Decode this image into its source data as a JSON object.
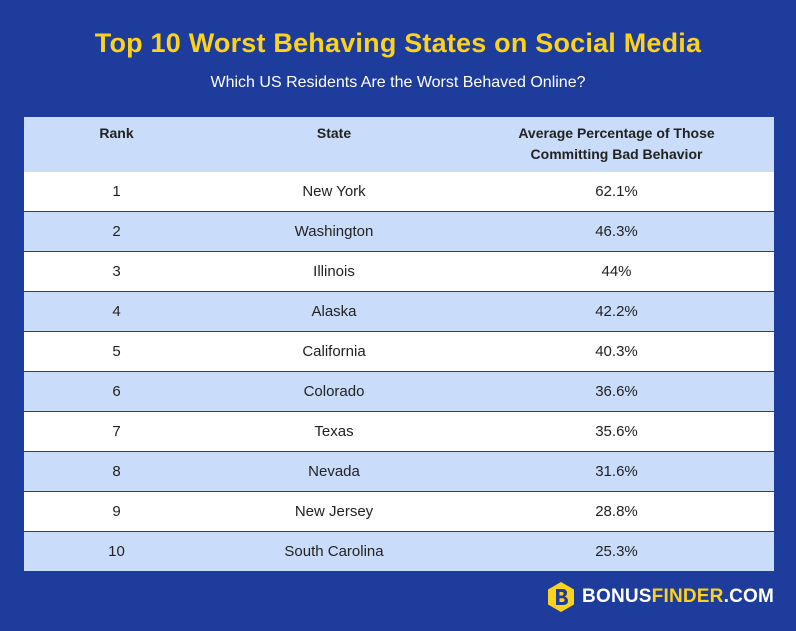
{
  "title": "Top 10 Worst Behaving States on Social Media",
  "subtitle": "Which US Residents Are the Worst Behaved Online?",
  "brand": {
    "part1": "BONUS",
    "part2": "FINDER",
    "part3": ".COM",
    "logo_icon": "hexagon-b-logo-icon",
    "colors": {
      "accent": "#fcd21c",
      "background": "#1e3c9c"
    }
  },
  "chart_data": {
    "type": "table",
    "title": "Top 10 Worst Behaving States on Social Media",
    "subtitle": "Which US Residents Are the Worst Behaved Online?",
    "columns": [
      "Rank",
      "State",
      "Average Percentage of Those Committing Bad Behavior"
    ],
    "header_lines": {
      "rank": "Rank",
      "state": "State",
      "pct_line1": "Average Percentage of Those",
      "pct_line2": "Committing Bad Behavior"
    },
    "rows": [
      {
        "rank": "1",
        "state": "New York",
        "pct": "62.1%"
      },
      {
        "rank": "2",
        "state": "Washington",
        "pct": "46.3%"
      },
      {
        "rank": "3",
        "state": "Illinois",
        "pct": "44%"
      },
      {
        "rank": "4",
        "state": "Alaska",
        "pct": "42.2%"
      },
      {
        "rank": "5",
        "state": "California",
        "pct": "40.3%"
      },
      {
        "rank": "6",
        "state": "Colorado",
        "pct": "36.6%"
      },
      {
        "rank": "7",
        "state": "Texas",
        "pct": "35.6%"
      },
      {
        "rank": "8",
        "state": "Nevada",
        "pct": "31.6%"
      },
      {
        "rank": "9",
        "state": "New Jersey",
        "pct": "28.8%"
      },
      {
        "rank": "10",
        "state": "South Carolina",
        "pct": "25.3%"
      }
    ]
  }
}
